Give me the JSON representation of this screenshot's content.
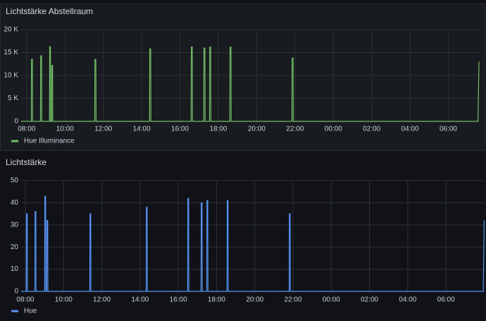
{
  "chart_data": [
    {
      "type": "line",
      "title": "Lichtstärke Abstellraum",
      "x": [
        7.71,
        8.24,
        8.25,
        8.3,
        8.31,
        8.72,
        8.73,
        8.78,
        8.79,
        9.19,
        9.2,
        9.24,
        9.25,
        9.3,
        9.31,
        9.35,
        9.36,
        11.55,
        11.56,
        11.61,
        11.62,
        14.41,
        14.42,
        14.47,
        14.48,
        16.58,
        16.59,
        16.64,
        16.65,
        17.24,
        17.25,
        17.3,
        17.31,
        17.54,
        17.55,
        17.6,
        17.61,
        18.6,
        18.61,
        18.66,
        18.67,
        21.84,
        21.85,
        21.9,
        21.91,
        31.55,
        31.6
      ],
      "series": [
        {
          "name": "Hue Illuminance",
          "color": "#73bf69",
          "values": [
            0,
            0,
            13500,
            13500,
            0,
            0,
            14300,
            14300,
            0,
            0,
            16300,
            16300,
            0,
            0,
            12200,
            12200,
            0,
            0,
            13500,
            13500,
            0,
            0,
            15800,
            15800,
            0,
            0,
            16200,
            16200,
            0,
            0,
            16000,
            16000,
            0,
            0,
            16200,
            16200,
            0,
            0,
            16200,
            16200,
            0,
            0,
            13800,
            13800,
            0,
            0,
            13000
          ]
        }
      ],
      "xlim": [
        7.71,
        31.6
      ],
      "xticks": [
        {
          "value": 8,
          "label": "08:00"
        },
        {
          "value": 10,
          "label": "10:00"
        },
        {
          "value": 12,
          "label": "12:00"
        },
        {
          "value": 14,
          "label": "14:00"
        },
        {
          "value": 16,
          "label": "16:00"
        },
        {
          "value": 18,
          "label": "18:00"
        },
        {
          "value": 20,
          "label": "20:00"
        },
        {
          "value": 22,
          "label": "22:00"
        },
        {
          "value": 24,
          "label": "00:00"
        },
        {
          "value": 26,
          "label": "02:00"
        },
        {
          "value": 28,
          "label": "04:00"
        },
        {
          "value": 30,
          "label": "06:00"
        }
      ],
      "ylim": [
        0,
        20000
      ],
      "yticks": [
        0,
        {
          "value": 5000,
          "label": "5 K"
        },
        {
          "value": 10000,
          "label": "10 K"
        },
        {
          "value": 15000,
          "label": "15 K"
        },
        {
          "value": 20000,
          "label": "20 K"
        }
      ],
      "grid": true
    },
    {
      "type": "line",
      "title": "Lichtstärke",
      "x": [
        7.78,
        8.05,
        8.06,
        8.1,
        8.11,
        8.5,
        8.51,
        8.55,
        8.56,
        9.01,
        9.02,
        9.06,
        9.07,
        9.12,
        9.13,
        9.17,
        9.18,
        11.37,
        11.38,
        11.42,
        11.43,
        14.32,
        14.33,
        14.37,
        14.38,
        16.49,
        16.5,
        16.54,
        16.55,
        17.19,
        17.2,
        17.24,
        17.25,
        17.49,
        17.5,
        17.54,
        17.55,
        18.55,
        18.56,
        18.6,
        18.61,
        21.8,
        21.81,
        21.85,
        21.86,
        31.95,
        32.0
      ],
      "series": [
        {
          "name": "Hue",
          "color": "#5794f2",
          "values": [
            0,
            0,
            35,
            35,
            0,
            0,
            36,
            36,
            0,
            0,
            43,
            43,
            0,
            0,
            32,
            32,
            0,
            0,
            35,
            35,
            0,
            0,
            38,
            38,
            0,
            0,
            42,
            42,
            0,
            0,
            40,
            40,
            0,
            0,
            41,
            41,
            0,
            0,
            41,
            41,
            0,
            0,
            35,
            35,
            0,
            0,
            32
          ]
        }
      ],
      "xlim": [
        7.78,
        32.02
      ],
      "xticks": [
        {
          "value": 8,
          "label": "08:00"
        },
        {
          "value": 10,
          "label": "10:00"
        },
        {
          "value": 12,
          "label": "12:00"
        },
        {
          "value": 14,
          "label": "14:00"
        },
        {
          "value": 16,
          "label": "16:00"
        },
        {
          "value": 18,
          "label": "18:00"
        },
        {
          "value": 20,
          "label": "20:00"
        },
        {
          "value": 22,
          "label": "22:00"
        },
        {
          "value": 24,
          "label": "00:00"
        },
        {
          "value": 26,
          "label": "02:00"
        },
        {
          "value": 28,
          "label": "04:00"
        },
        {
          "value": 30,
          "label": "06:00"
        }
      ],
      "ylim": [
        0,
        50
      ],
      "yticks": [
        0,
        10,
        20,
        30,
        40,
        50
      ],
      "grid": true
    }
  ]
}
